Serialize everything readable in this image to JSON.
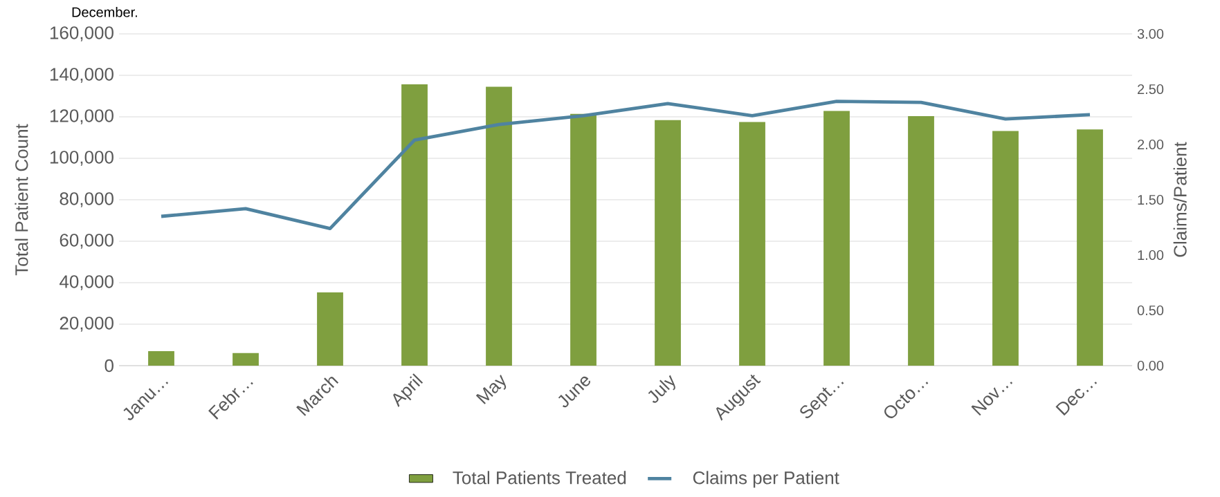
{
  "chart_data": {
    "type": "bar",
    "title": "December.",
    "categories": [
      "Janu…",
      "Febr…",
      "March",
      "April",
      "May",
      "June",
      "July",
      "August",
      "Sept…",
      "Octo…",
      "Nov…",
      "Dec…"
    ],
    "series": [
      {
        "name": "Total Patients Treated",
        "color": "#7f9f3f",
        "values": [
          7000,
          6100,
          35300,
          135700,
          134500,
          121400,
          118400,
          117500,
          122800,
          120300,
          113200,
          113900
        ]
      },
      {
        "name": "Claims per Patient",
        "type": "line",
        "axis": "y2",
        "color": "#4f83a0",
        "values": [
          1.35,
          1.42,
          1.24,
          2.04,
          2.18,
          2.26,
          2.37,
          2.26,
          2.39,
          2.38,
          2.23,
          2.27
        ]
      }
    ],
    "ylabel": "Total Patient Count",
    "y2label": "Claims/Patient",
    "ylim": [
      0,
      160000
    ],
    "yticks": [
      0,
      {
        "value": 20000,
        "label": "20,000"
      },
      {
        "value": 40000,
        "label": "40,000"
      },
      {
        "value": 60000,
        "label": "60,000"
      },
      {
        "value": 80000,
        "label": "80,000"
      },
      {
        "value": 100000,
        "label": "100,000"
      },
      {
        "value": 120000,
        "label": "120,000"
      },
      {
        "value": 140000,
        "label": "140,000"
      },
      {
        "value": 160000,
        "label": "160,000"
      }
    ],
    "y2lim": [
      0,
      3
    ],
    "y2ticks": [
      {
        "value": 0,
        "label": "0.00"
      },
      {
        "value": 0.5,
        "label": "0.50"
      },
      {
        "value": 1,
        "label": "1.00"
      },
      {
        "value": 1.5,
        "label": "1.50"
      },
      {
        "value": 2,
        "label": "2.00"
      },
      {
        "value": 2.5,
        "label": "2.50"
      },
      {
        "value": 3,
        "label": "3.00"
      }
    ],
    "grid": "y",
    "legend": "bottom"
  }
}
